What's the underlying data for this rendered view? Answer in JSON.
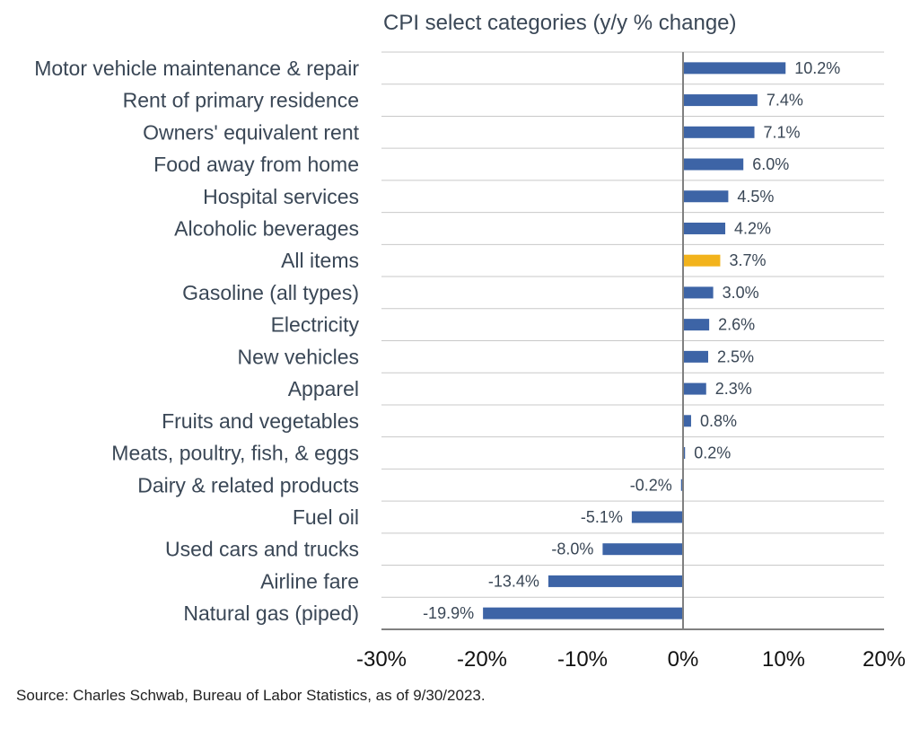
{
  "chart_data": {
    "type": "bar",
    "orientation": "horizontal",
    "title": "CPI select categories (y/y % change)",
    "categories": [
      "Motor vehicle maintenance & repair",
      "Rent of primary residence",
      "Owners' equivalent rent",
      "Food away from home",
      "Hospital services",
      "Alcoholic beverages",
      "All items",
      "Gasoline (all types)",
      "Electricity",
      "New vehicles",
      "Apparel",
      "Fruits and vegetables",
      "Meats, poultry, fish, & eggs",
      "Dairy & related products",
      "Fuel oil",
      "Used cars and trucks",
      "Airline fare",
      "Natural gas (piped)"
    ],
    "values": [
      10.2,
      7.4,
      7.1,
      6.0,
      4.5,
      4.2,
      3.7,
      3.0,
      2.6,
      2.5,
      2.3,
      0.8,
      0.2,
      -0.2,
      -5.1,
      -8.0,
      -13.4,
      -19.9
    ],
    "value_labels": [
      "10.2%",
      "7.4%",
      "7.1%",
      "6.0%",
      "4.5%",
      "4.2%",
      "3.7%",
      "3.0%",
      "2.6%",
      "2.5%",
      "2.3%",
      "0.8%",
      "0.2%",
      "-0.2%",
      "-5.1%",
      "-8.0%",
      "-13.4%",
      "-19.9%"
    ],
    "highlight_category": "All items",
    "xlim": [
      -30,
      20
    ],
    "xticks": [
      -30,
      -20,
      -10,
      0,
      10,
      20
    ],
    "xtick_labels": [
      "-30%",
      "-20%",
      "-10%",
      "0%",
      "10%",
      "20%"
    ],
    "grid": "horizontal",
    "colors": {
      "bar": "#3d64a6",
      "highlight": "#f2b31c",
      "grid": "#c9c9c9",
      "axis": "#808080"
    }
  },
  "source": "Source: Charles Schwab, Bureau of Labor Statistics, as of 9/30/2023."
}
